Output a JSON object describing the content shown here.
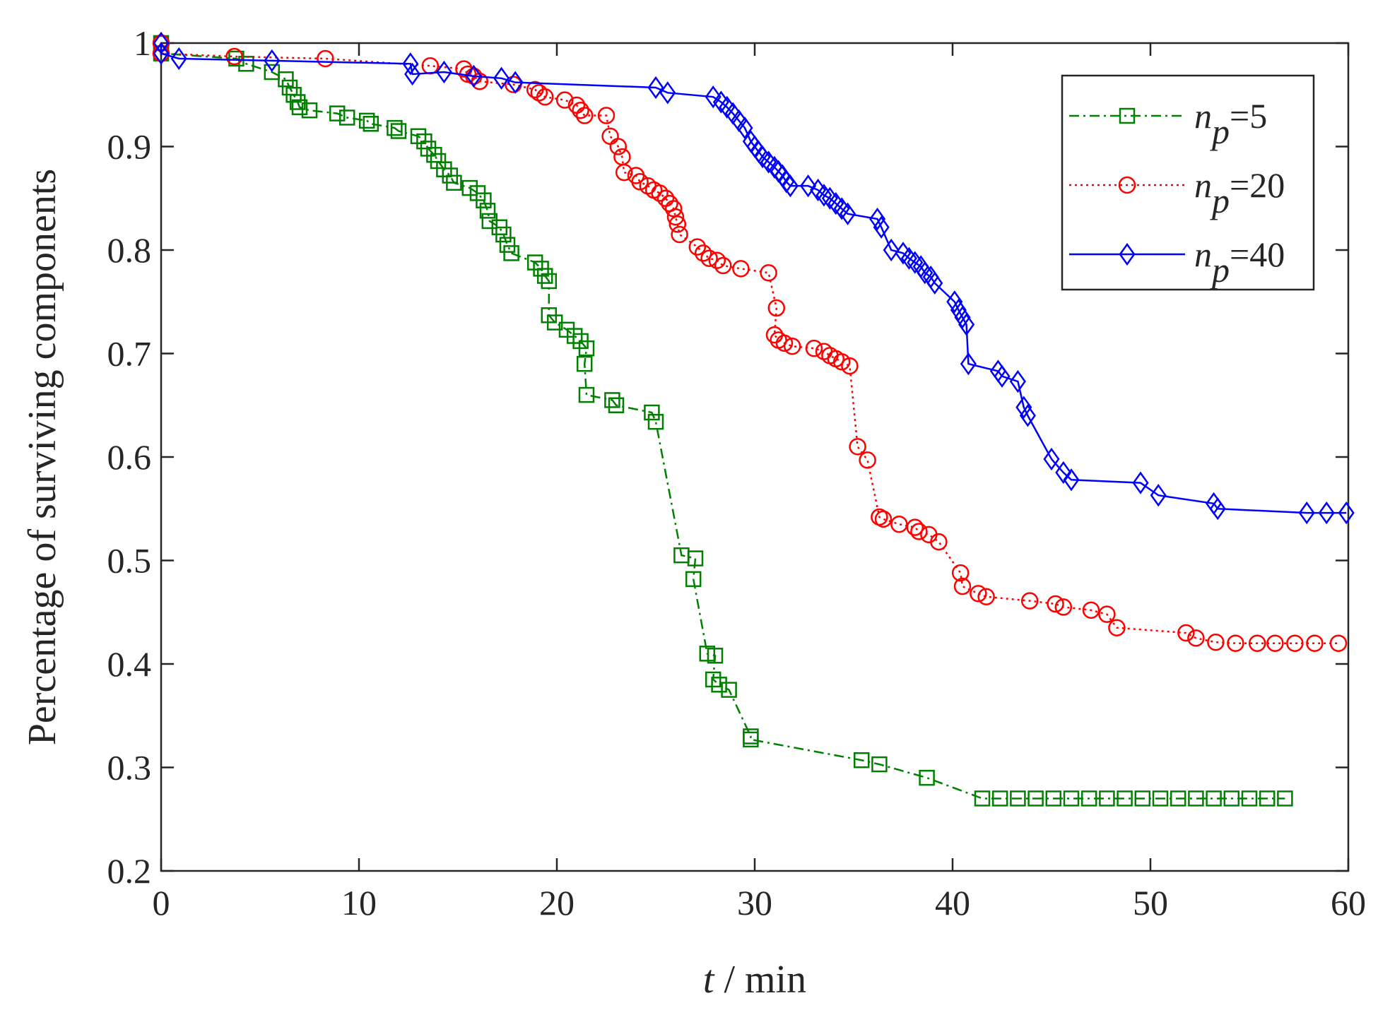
{
  "chart_data": {
    "type": "line",
    "xlabel": "t / min",
    "ylabel": "Percentage of surviving components",
    "xlim": [
      0,
      60
    ],
    "xticks": [
      0,
      10,
      20,
      30,
      40,
      50,
      60
    ],
    "ylim": [
      0.2,
      1
    ],
    "yticks": [
      0.2,
      0.3,
      0.4,
      0.5,
      0.6,
      0.7,
      0.8,
      0.9,
      1
    ],
    "legend": "upper right",
    "series": [
      {
        "name": "np=5",
        "color": "#008000",
        "marker": "square",
        "linestyle": "dashdot",
        "x": [
          0,
          0,
          3.8,
          4.3,
          5.6,
          6.3,
          6.5,
          6.7,
          6.9,
          7,
          7.5,
          8.9,
          9.4,
          10.4,
          10.6,
          11.8,
          12.0,
          13.0,
          13.3,
          13.5,
          13.8,
          14,
          14.3,
          14.6,
          14.8,
          15.6,
          16,
          16.3,
          16.5,
          16.6,
          17.1,
          17.3,
          17.5,
          17.7,
          18.9,
          19.2,
          19.4,
          19.6,
          19.6,
          19.9,
          20.5,
          20.9,
          21.2,
          21.5,
          21.4,
          21.5,
          22.8,
          23.0,
          24.8,
          25.0,
          26.3,
          27.0,
          26.9,
          27.6,
          28,
          27.9,
          28.2,
          28.7,
          29.8,
          29.8,
          35.4,
          36.3,
          38.7,
          41.5,
          42.4,
          43.3,
          44.2,
          45.1,
          46.0,
          46.9,
          47.8,
          48.7,
          49.6,
          50.5,
          51.4,
          52.3,
          53.2,
          54.1,
          55.0,
          55.9,
          56.8
        ],
        "values": [
          1.0,
          0.99,
          0.985,
          0.98,
          0.972,
          0.965,
          0.957,
          0.95,
          0.943,
          0.938,
          0.935,
          0.932,
          0.928,
          0.925,
          0.922,
          0.918,
          0.915,
          0.91,
          0.905,
          0.898,
          0.892,
          0.886,
          0.878,
          0.872,
          0.865,
          0.86,
          0.855,
          0.848,
          0.838,
          0.828,
          0.822,
          0.815,
          0.805,
          0.797,
          0.788,
          0.782,
          0.775,
          0.77,
          0.737,
          0.73,
          0.723,
          0.717,
          0.712,
          0.705,
          0.69,
          0.66,
          0.655,
          0.65,
          0.643,
          0.634,
          0.505,
          0.502,
          0.482,
          0.41,
          0.408,
          0.385,
          0.38,
          0.375,
          0.33,
          0.327,
          0.307,
          0.303,
          0.29,
          0.27,
          0.27,
          0.27,
          0.27,
          0.27,
          0.27,
          0.27,
          0.27,
          0.27,
          0.27,
          0.27,
          0.27,
          0.27,
          0.27,
          0.27,
          0.27,
          0.27,
          0.27
        ]
      },
      {
        "name": "np=20",
        "color": "#ff0000",
        "marker": "circle",
        "linestyle": "dotted",
        "x": [
          0,
          0,
          3.7,
          8.3,
          13.6,
          15.3,
          15.5,
          15.8,
          16.1,
          17.8,
          18.9,
          19.1,
          19.4,
          20.4,
          21.0,
          21.2,
          21.4,
          22.5,
          22.7,
          23.1,
          23.3,
          23.4,
          24.0,
          24.2,
          24.6,
          24.9,
          25.2,
          25.5,
          25.7,
          25.9,
          26.0,
          26.1,
          26.2,
          27.1,
          27.4,
          27.7,
          28.1,
          28.4,
          29.3,
          30.7,
          31.1,
          31.0,
          31.2,
          31.5,
          31.9,
          33.0,
          33.5,
          33.8,
          34.1,
          34.4,
          34.8,
          35.2,
          35.7,
          36.3,
          36.5,
          37.3,
          38.1,
          38.3,
          38.8,
          39.3,
          40.4,
          40.5,
          41.3,
          41.7,
          43.9,
          45.2,
          45.6,
          47.0,
          47.8,
          48.3,
          51.8,
          52.3,
          53.3,
          54.3,
          55.4,
          56.3,
          57.3,
          58.3,
          59.5
        ],
        "values": [
          1.0,
          0.99,
          0.987,
          0.985,
          0.978,
          0.975,
          0.97,
          0.968,
          0.963,
          0.96,
          0.955,
          0.952,
          0.948,
          0.945,
          0.94,
          0.935,
          0.93,
          0.93,
          0.91,
          0.9,
          0.89,
          0.875,
          0.872,
          0.866,
          0.862,
          0.858,
          0.855,
          0.85,
          0.845,
          0.84,
          0.832,
          0.825,
          0.815,
          0.803,
          0.797,
          0.792,
          0.79,
          0.785,
          0.782,
          0.778,
          0.744,
          0.718,
          0.713,
          0.71,
          0.707,
          0.705,
          0.702,
          0.698,
          0.695,
          0.692,
          0.688,
          0.61,
          0.597,
          0.542,
          0.54,
          0.535,
          0.532,
          0.528,
          0.525,
          0.518,
          0.488,
          0.475,
          0.468,
          0.465,
          0.461,
          0.458,
          0.455,
          0.452,
          0.448,
          0.435,
          0.43,
          0.425,
          0.421,
          0.42,
          0.42,
          0.42,
          0.42,
          0.42,
          0.42
        ]
      },
      {
        "name": "np=40",
        "color": "#0000ff",
        "marker": "diamond",
        "linestyle": "solid",
        "x": [
          0,
          0,
          0.9,
          5.6,
          12.6,
          12.7,
          14.3,
          15.8,
          17.2,
          17.9,
          25.0,
          25.6,
          27.9,
          28.3,
          28.6,
          28.9,
          29.2,
          29.5,
          29.8,
          30,
          30.2,
          30.4,
          30.7,
          31.0,
          31.2,
          31.4,
          31.6,
          31.8,
          32.7,
          33.2,
          33.5,
          33.8,
          34.1,
          34.4,
          34.7,
          36.2,
          36.4,
          36.9,
          37.5,
          37.8,
          38.1,
          38.4,
          38.6,
          38.9,
          39.1,
          40.1,
          40.3,
          40.5,
          40.7,
          40.8,
          42.3,
          42.5,
          43.3,
          43.6,
          43.8,
          45.0,
          45.6,
          46.0,
          49.5,
          50.4,
          53.2,
          53.4,
          57.9,
          58.9,
          59.9
        ],
        "values": [
          1.0,
          0.99,
          0.985,
          0.983,
          0.98,
          0.97,
          0.972,
          0.968,
          0.966,
          0.962,
          0.957,
          0.952,
          0.948,
          0.943,
          0.938,
          0.932,
          0.925,
          0.918,
          0.905,
          0.9,
          0.895,
          0.89,
          0.885,
          0.88,
          0.876,
          0.872,
          0.866,
          0.862,
          0.862,
          0.858,
          0.853,
          0.85,
          0.845,
          0.84,
          0.835,
          0.83,
          0.822,
          0.8,
          0.797,
          0.792,
          0.788,
          0.784,
          0.778,
          0.774,
          0.768,
          0.75,
          0.742,
          0.735,
          0.728,
          0.69,
          0.683,
          0.678,
          0.673,
          0.648,
          0.64,
          0.598,
          0.585,
          0.578,
          0.575,
          0.563,
          0.555,
          0.55,
          0.546,
          0.546,
          0.546
        ]
      }
    ]
  }
}
